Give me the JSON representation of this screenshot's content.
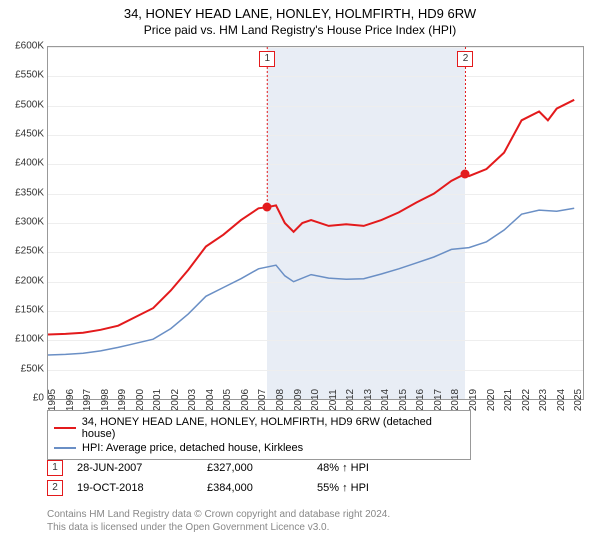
{
  "title": "34, HONEY HEAD LANE, HONLEY, HOLMFIRTH, HD9 6RW",
  "subtitle": "Price paid vs. HM Land Registry's House Price Index (HPI)",
  "chart": {
    "type": "line",
    "background_color": "#ffffff",
    "grid_color": "#eeeeee",
    "axis_color": "#999999",
    "shaded_band_color": "#e8edf5",
    "shaded_band_x": [
      2007.5,
      2018.8
    ],
    "xlim": [
      1995,
      2025.5
    ],
    "ylim": [
      0,
      600000
    ],
    "ytick_step": 50000,
    "yticks": [
      "£0",
      "£50K",
      "£100K",
      "£150K",
      "£200K",
      "£250K",
      "£300K",
      "£350K",
      "£400K",
      "£450K",
      "£500K",
      "£550K",
      "£600K"
    ],
    "xticks": [
      1995,
      1996,
      1997,
      1998,
      1999,
      2000,
      2001,
      2002,
      2003,
      2004,
      2005,
      2006,
      2007,
      2008,
      2009,
      2010,
      2011,
      2012,
      2013,
      2014,
      2015,
      2016,
      2017,
      2018,
      2019,
      2020,
      2021,
      2022,
      2023,
      2024,
      2025
    ],
    "label_fontsize": 10,
    "series": [
      {
        "name": "34, HONEY HEAD LANE, HONLEY, HOLMFIRTH, HD9 6RW (detached house)",
        "color": "#e31a1c",
        "line_width": 2,
        "data": [
          [
            1995,
            110000
          ],
          [
            1996,
            111000
          ],
          [
            1997,
            113000
          ],
          [
            1998,
            118000
          ],
          [
            1999,
            125000
          ],
          [
            2000,
            140000
          ],
          [
            2001,
            155000
          ],
          [
            2002,
            185000
          ],
          [
            2003,
            220000
          ],
          [
            2004,
            260000
          ],
          [
            2005,
            280000
          ],
          [
            2006,
            305000
          ],
          [
            2007,
            325000
          ],
          [
            2007.5,
            327000
          ],
          [
            2008,
            330000
          ],
          [
            2008.5,
            300000
          ],
          [
            2009,
            285000
          ],
          [
            2009.5,
            300000
          ],
          [
            2010,
            305000
          ],
          [
            2011,
            295000
          ],
          [
            2012,
            298000
          ],
          [
            2013,
            295000
          ],
          [
            2014,
            305000
          ],
          [
            2015,
            318000
          ],
          [
            2016,
            335000
          ],
          [
            2017,
            350000
          ],
          [
            2018,
            372000
          ],
          [
            2018.8,
            384000
          ],
          [
            2019,
            380000
          ],
          [
            2020,
            392000
          ],
          [
            2021,
            420000
          ],
          [
            2022,
            475000
          ],
          [
            2023,
            490000
          ],
          [
            2023.5,
            475000
          ],
          [
            2024,
            495000
          ],
          [
            2025,
            510000
          ]
        ]
      },
      {
        "name": "HPI: Average price, detached house, Kirklees",
        "color": "#6a8fc5",
        "line_width": 1.5,
        "data": [
          [
            1995,
            75000
          ],
          [
            1996,
            76000
          ],
          [
            1997,
            78000
          ],
          [
            1998,
            82000
          ],
          [
            1999,
            88000
          ],
          [
            2000,
            95000
          ],
          [
            2001,
            102000
          ],
          [
            2002,
            120000
          ],
          [
            2003,
            145000
          ],
          [
            2004,
            175000
          ],
          [
            2005,
            190000
          ],
          [
            2006,
            205000
          ],
          [
            2007,
            222000
          ],
          [
            2008,
            228000
          ],
          [
            2008.5,
            210000
          ],
          [
            2009,
            200000
          ],
          [
            2010,
            212000
          ],
          [
            2011,
            206000
          ],
          [
            2012,
            204000
          ],
          [
            2013,
            205000
          ],
          [
            2014,
            213000
          ],
          [
            2015,
            222000
          ],
          [
            2016,
            232000
          ],
          [
            2017,
            242000
          ],
          [
            2018,
            255000
          ],
          [
            2019,
            258000
          ],
          [
            2020,
            268000
          ],
          [
            2021,
            288000
          ],
          [
            2022,
            315000
          ],
          [
            2023,
            322000
          ],
          [
            2024,
            320000
          ],
          [
            2025,
            325000
          ]
        ]
      }
    ],
    "sale_markers": [
      {
        "n": "1",
        "x": 2007.5,
        "y": 327000
      },
      {
        "n": "2",
        "x": 2018.8,
        "y": 384000
      }
    ]
  },
  "legend": {
    "items": [
      {
        "color": "#e31a1c",
        "label": "34, HONEY HEAD LANE, HONLEY, HOLMFIRTH, HD9 6RW (detached house)"
      },
      {
        "color": "#6a8fc5",
        "label": "HPI: Average price, detached house, Kirklees"
      }
    ]
  },
  "sales": [
    {
      "n": "1",
      "date": "28-JUN-2007",
      "price": "£327,000",
      "pct": "48% ↑ HPI"
    },
    {
      "n": "2",
      "date": "19-OCT-2018",
      "price": "£384,000",
      "pct": "55% ↑ HPI"
    }
  ],
  "footnote_line1": "Contains HM Land Registry data © Crown copyright and database right 2024.",
  "footnote_line2": "This data is licensed under the Open Government Licence v3.0."
}
